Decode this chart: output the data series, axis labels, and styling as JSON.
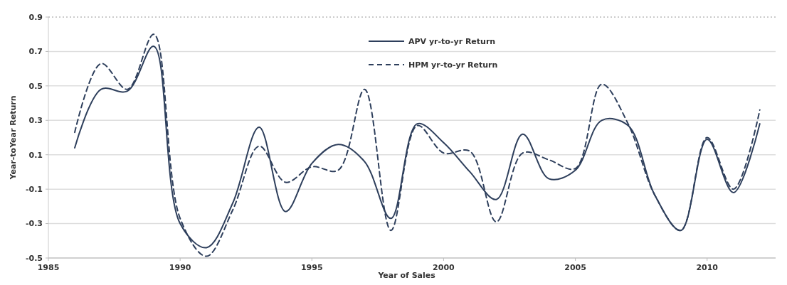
{
  "chart_data": {
    "type": "line",
    "xlabel": "Year of Sales",
    "ylabel": "Year-toYear Return",
    "x": [
      1986,
      1987,
      1988,
      1989,
      1990,
      1991,
      1992,
      1993,
      1994,
      1995,
      1996,
      1997,
      1998,
      1999,
      2000,
      2001,
      2002,
      2003,
      2004,
      2005,
      2006,
      2007,
      2008,
      2009,
      2010,
      2011,
      2012
    ],
    "series": [
      {
        "name": "APV yr-to-yr Return",
        "color": "#2e3f5c",
        "line_style": "solid",
        "values": [
          0.14,
          0.48,
          0.47,
          0.73,
          -0.3,
          -0.44,
          -0.18,
          0.26,
          -0.23,
          0.05,
          0.16,
          0.06,
          -0.27,
          0.28,
          0.17,
          0.0,
          -0.16,
          0.22,
          -0.04,
          0.01,
          0.3,
          0.27,
          -0.13,
          -0.34,
          0.19,
          -0.12,
          0.28
        ]
      },
      {
        "name": "HPM yr-to-yr Return",
        "color": "#2e3f5c",
        "line_style": "dashed",
        "values": [
          0.23,
          0.63,
          0.48,
          0.8,
          -0.27,
          -0.49,
          -0.22,
          0.15,
          -0.06,
          0.03,
          0.01,
          0.48,
          -0.34,
          0.27,
          0.11,
          0.12,
          -0.29,
          0.11,
          0.07,
          0.02,
          0.51,
          0.28,
          -0.13,
          -0.34,
          0.2,
          -0.1,
          0.36
        ]
      }
    ],
    "xlim": [
      1985,
      2012.6
    ],
    "xticks": [
      1985,
      1990,
      1995,
      2000,
      2005,
      2010
    ],
    "ylim": [
      -0.5,
      0.9
    ],
    "yticks": [
      -0.5,
      -0.3,
      -0.1,
      0.1,
      0.3,
      0.5,
      0.7,
      0.9
    ],
    "grid": "y",
    "legend": "top",
    "marker": "none"
  }
}
